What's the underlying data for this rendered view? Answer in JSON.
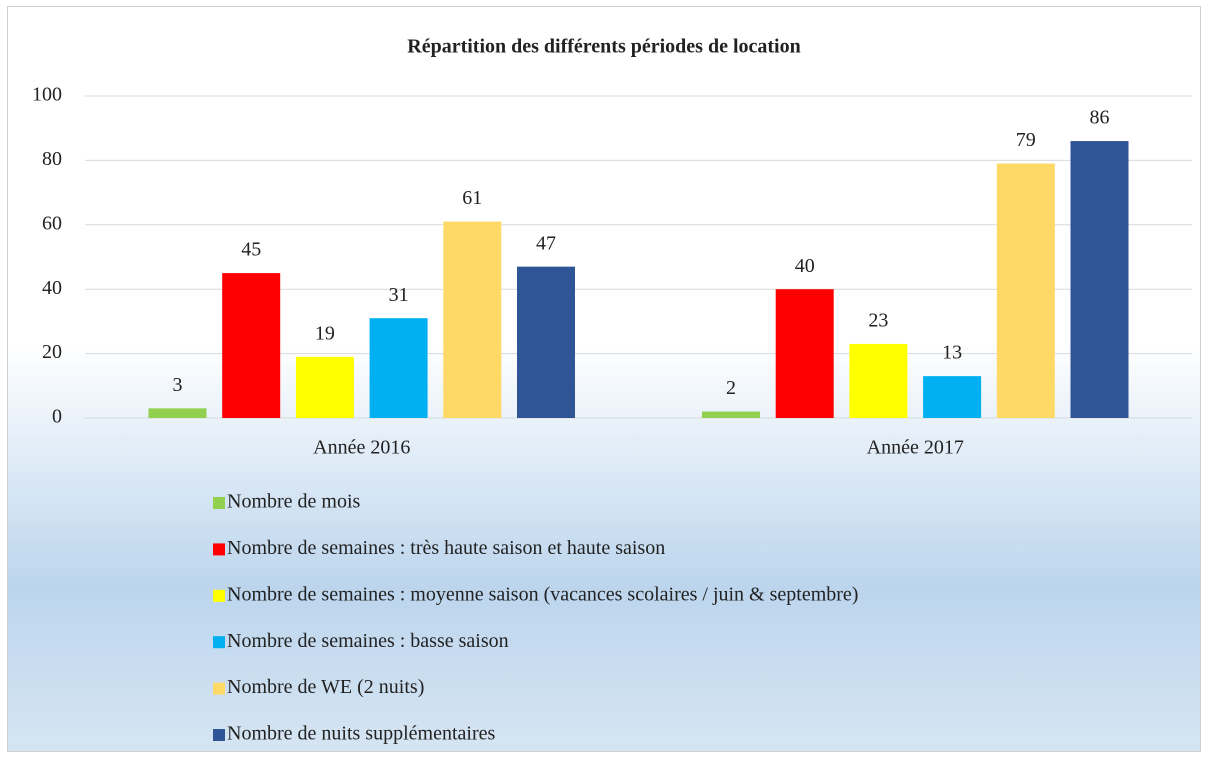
{
  "chart_data": {
    "type": "bar",
    "title": "Répartition des différents périodes de location",
    "categories": [
      "Année 2016",
      "Année 2017"
    ],
    "series": [
      {
        "name": "Nombre de mois",
        "color": "#92d050",
        "values": [
          3,
          2
        ]
      },
      {
        "name": "Nombre de semaines : très haute saison et haute saison",
        "color": "#ff0000",
        "values": [
          45,
          40
        ]
      },
      {
        "name": "Nombre de semaines : moyenne saison (vacances scolaires / juin & septembre)",
        "color": "#ffff00",
        "values": [
          19,
          23
        ]
      },
      {
        "name": "Nombre de semaines : basse saison",
        "color": "#00b0f0",
        "values": [
          31,
          13
        ]
      },
      {
        "name": "Nombre de WE (2 nuits)",
        "color": "#ffd966",
        "values": [
          61,
          79
        ]
      },
      {
        "name": "Nombre de nuits supplémentaires",
        "color": "#2f5597",
        "values": [
          47,
          86
        ]
      }
    ],
    "ylim": [
      0,
      100
    ],
    "yticks": [
      0,
      20,
      40,
      60,
      80,
      100
    ],
    "grid": true,
    "legend": "bottom"
  }
}
